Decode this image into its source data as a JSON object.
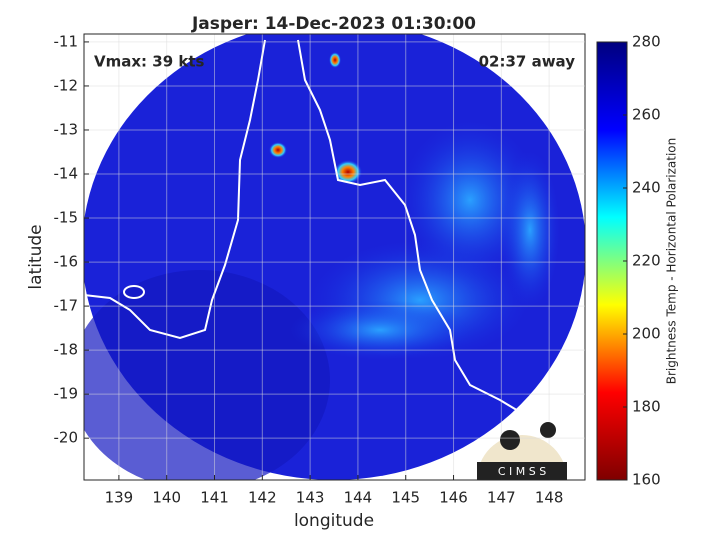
{
  "chart_data": {
    "type": "image",
    "title": "Jasper: 14-Dec-2023 01:30:00",
    "annotations": [
      "Vmax: 39 kts",
      "02:37 away"
    ],
    "x_label": "longitude",
    "y_label": "latitude",
    "xlim": [
      138.27,
      148.75
    ],
    "xticks": [
      139,
      140,
      141,
      142,
      143,
      144,
      145,
      146,
      147,
      148
    ],
    "ylim": [
      -20.95,
      -10.82
    ],
    "yticks": [
      -20,
      -19,
      -18,
      -17,
      -16,
      -15,
      -14,
      -13,
      -12,
      -11
    ],
    "grid": true,
    "colorbar": {
      "label": "Brightness Temp - Horizontal Polarization",
      "lim": [
        160,
        280
      ],
      "ticks": [
        160,
        180,
        200,
        220,
        240,
        260,
        280
      ],
      "colormap": [
        "#7f0000",
        "#ff0000",
        "#ffff00",
        "#00ffff",
        "#0000ff",
        "#00007f"
      ]
    },
    "logo_text": "C I M S S"
  }
}
